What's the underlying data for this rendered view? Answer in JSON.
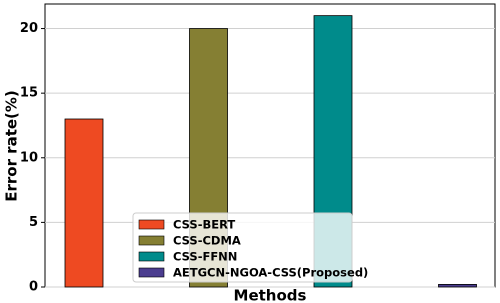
{
  "chart_data": {
    "type": "bar",
    "xlabel": "Methods",
    "ylabel": "Error rate(%)",
    "series": [
      {
        "name": "CSS-BERT",
        "color": "#ee4a22",
        "values": [
          13
        ]
      },
      {
        "name": "CSS-CDMA",
        "color": "#857f33",
        "values": [
          20
        ]
      },
      {
        "name": "CSS-FFNN",
        "color": "#008b8b",
        "values": [
          21
        ]
      },
      {
        "name": "AETGCN-NGOA-CSS(Proposed)",
        "color": "#4b3d8f",
        "values": [
          0.2
        ]
      }
    ],
    "ylim": [
      0,
      21.9
    ],
    "yticks": [
      0,
      5,
      10,
      15,
      20
    ],
    "grid": true,
    "legend": "lower center"
  }
}
